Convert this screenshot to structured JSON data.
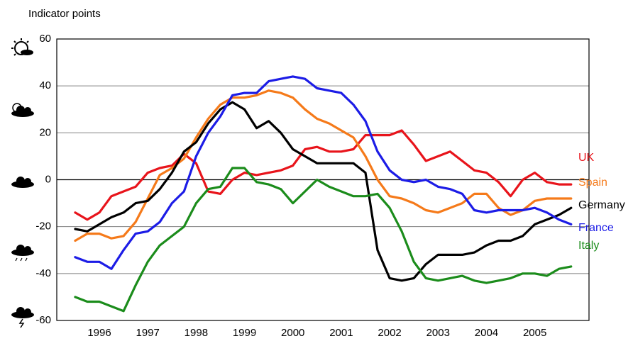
{
  "chart_data": {
    "type": "line",
    "y_label": "Indicator points",
    "x": [
      1996.0,
      1996.25,
      1996.5,
      1996.75,
      1997.0,
      1997.25,
      1997.5,
      1997.75,
      1998.0,
      1998.25,
      1998.5,
      1998.75,
      1999.0,
      1999.25,
      1999.5,
      1999.75,
      2000.0,
      2000.25,
      2000.5,
      2000.75,
      2001.0,
      2001.25,
      2001.5,
      2001.75,
      2002.0,
      2002.25,
      2002.5,
      2002.75,
      2003.0,
      2003.25,
      2003.5,
      2003.75,
      2004.0,
      2004.25,
      2004.5,
      2004.75,
      2005.0,
      2005.25,
      2005.5,
      2005.75,
      2006.0,
      2006.25
    ],
    "xlim": [
      1995.62,
      2006.62
    ],
    "xticks": [
      {
        "value": 1996.5,
        "label": "1996"
      },
      {
        "value": 1997.5,
        "label": "1997"
      },
      {
        "value": 1998.5,
        "label": "1998"
      },
      {
        "value": 1999.5,
        "label": "1999"
      },
      {
        "value": 2000.5,
        "label": "2000"
      },
      {
        "value": 2001.5,
        "label": "2001"
      },
      {
        "value": 2002.5,
        "label": "2002"
      },
      {
        "value": 2003.5,
        "label": "2003"
      },
      {
        "value": 2004.5,
        "label": "2004"
      },
      {
        "value": 2005.5,
        "label": "2005"
      }
    ],
    "ylim": [
      -60,
      60
    ],
    "yticks": [
      -60,
      -40,
      -20,
      0,
      20,
      40,
      60
    ],
    "grid": true,
    "series": [
      {
        "name": "UK",
        "color": "#e8141b",
        "values": [
          -14,
          -17,
          -14,
          -7,
          -5,
          -3,
          3,
          5,
          6,
          11,
          7,
          -5,
          -6,
          0,
          3,
          2,
          3,
          4,
          6,
          13,
          14,
          12,
          12,
          13,
          19,
          19,
          19,
          21,
          15,
          8,
          10,
          12,
          8,
          4,
          3,
          -1,
          -7,
          0,
          3,
          -1,
          -2,
          -2
        ]
      },
      {
        "name": "Spain",
        "color": "#f57a1a",
        "values": [
          -26,
          -23,
          -23,
          -25,
          -24,
          -18,
          -8,
          2,
          5,
          9,
          18,
          26,
          32,
          35,
          35,
          36,
          38,
          37,
          35,
          30,
          26,
          24,
          21,
          18,
          10,
          0,
          -7,
          -8,
          -10,
          -13,
          -14,
          -12,
          -10,
          -6,
          -6,
          -12,
          -15,
          -13,
          -9,
          -8,
          -8,
          -8
        ]
      },
      {
        "name": "Germany",
        "color": "#000000",
        "values": [
          -21,
          -22,
          -19,
          -16,
          -14,
          -10,
          -9,
          -4,
          3,
          12,
          16,
          24,
          30,
          33,
          30,
          22,
          25,
          20,
          13,
          10,
          7,
          7,
          7,
          7,
          3,
          -30,
          -42,
          -43,
          -42,
          -36,
          -32,
          -32,
          -32,
          -31,
          -28,
          -26,
          -26,
          -24,
          -19,
          -17,
          -15,
          -12
        ]
      },
      {
        "name": "France",
        "color": "#1c1ce6",
        "values": [
          -33,
          -35,
          -35,
          -38,
          -30,
          -23,
          -22,
          -18,
          -10,
          -5,
          10,
          20,
          27,
          36,
          37,
          37,
          42,
          43,
          44,
          43,
          39,
          38,
          37,
          32,
          25,
          12,
          4,
          0,
          -1,
          0,
          -3,
          -4,
          -6,
          -13,
          -14,
          -13,
          -13,
          -13,
          -12,
          -14,
          -17,
          -19
        ]
      },
      {
        "name": "Italy",
        "color": "#1b8c1b",
        "values": [
          -50,
          -52,
          -52,
          -54,
          -56,
          -45,
          -35,
          -28,
          -24,
          -20,
          -10,
          -4,
          -3,
          5,
          5,
          -1,
          -2,
          -4,
          -10,
          -5,
          0,
          -3,
          -5,
          -7,
          -7,
          -6,
          -12,
          -22,
          -35,
          -42,
          -43,
          -42,
          -41,
          -43,
          -44,
          -43,
          -42,
          -40,
          -40,
          -41,
          -38,
          -37
        ]
      }
    ]
  }
}
